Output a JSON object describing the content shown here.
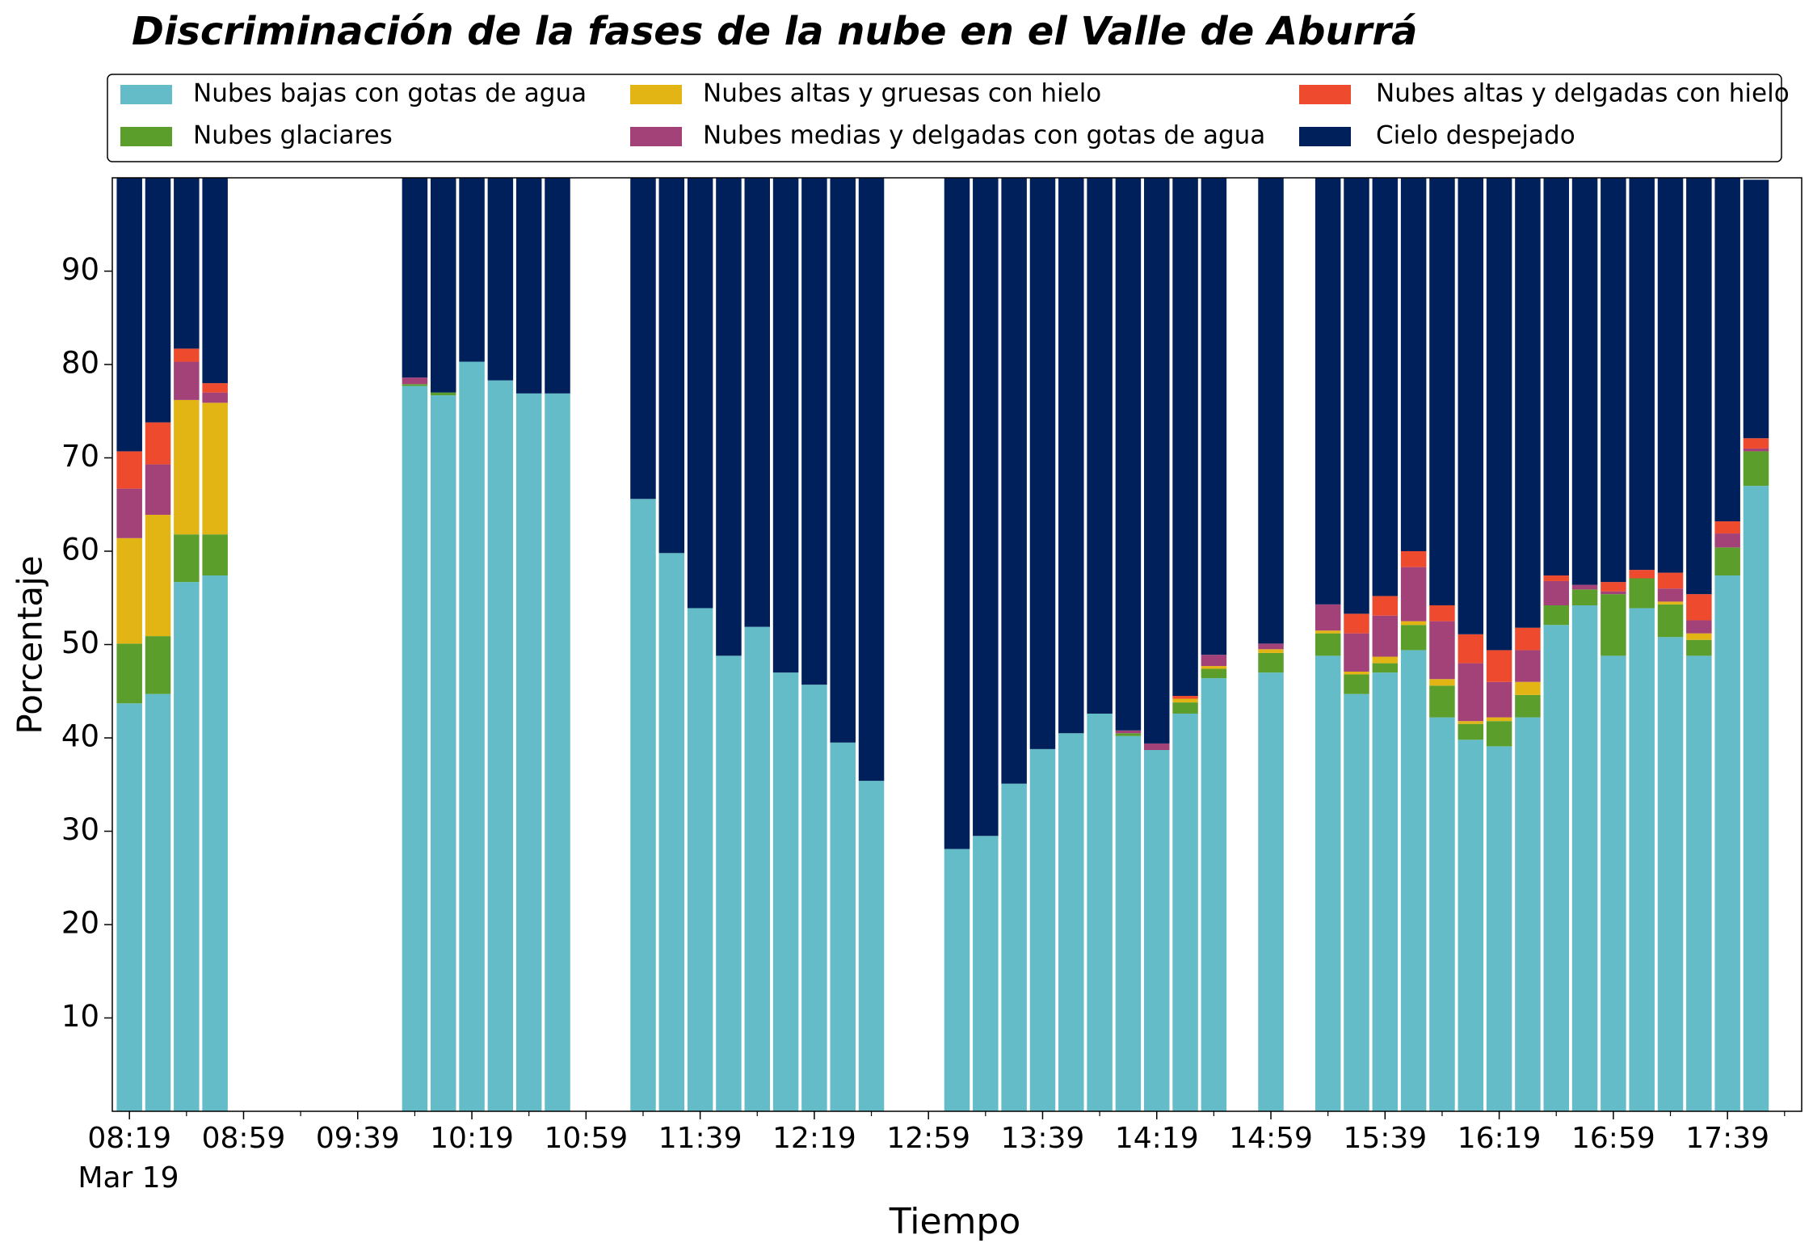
{
  "chart_data": {
    "type": "stacked_bar",
    "title": "Discriminación de la fases de la nube en el Valle de Aburrá",
    "xlabel": "Tiempo",
    "ylabel": "Porcentaje",
    "x_date_label": "Mar 19",
    "x": [
      "08:19",
      "08:29",
      "08:39",
      "08:49",
      "09:59",
      "10:09",
      "10:19",
      "10:29",
      "10:39",
      "10:49",
      "11:19",
      "11:29",
      "11:39",
      "11:49",
      "11:59",
      "12:09",
      "12:19",
      "12:29",
      "12:39",
      "13:09",
      "13:19",
      "13:29",
      "13:39",
      "13:49",
      "13:59",
      "14:09",
      "14:19",
      "14:29",
      "14:39",
      "14:59",
      "15:19",
      "15:29",
      "15:39",
      "15:49",
      "15:59",
      "16:09",
      "16:19",
      "16:29",
      "16:39",
      "16:49",
      "16:59",
      "17:09",
      "17:19",
      "17:29",
      "17:39",
      "17:49"
    ],
    "series": [
      {
        "name": "Nubes bajas con gotas de agua",
        "color": "#64bcc8",
        "values": [
          43.7,
          44.7,
          56.7,
          57.4,
          77.7,
          76.7,
          80.3,
          78.3,
          76.9,
          76.9,
          65.6,
          59.8,
          53.9,
          48.8,
          51.9,
          47.0,
          45.7,
          39.5,
          35.4,
          28.1,
          29.5,
          35.1,
          38.8,
          40.5,
          42.6,
          40.2,
          38.7,
          42.6,
          46.4,
          47.0,
          48.8,
          44.7,
          47.0,
          49.4,
          42.2,
          39.8,
          39.1,
          42.2,
          52.1,
          54.2,
          48.8,
          53.9,
          50.8,
          48.8,
          57.4,
          67.0
        ]
      },
      {
        "name": "Nubes glaciares",
        "color": "#5b9e2c",
        "values": [
          6.4,
          6.2,
          5.1,
          4.4,
          0.2,
          0.3,
          0,
          0,
          0,
          0,
          0,
          0,
          0,
          0,
          0,
          0,
          0,
          0,
          0,
          0,
          0,
          0,
          0,
          0,
          0,
          0.3,
          0,
          1.2,
          1.0,
          2.1,
          2.4,
          2.1,
          1.0,
          2.7,
          3.4,
          1.7,
          2.7,
          2.4,
          2.1,
          1.7,
          6.6,
          3.2,
          3.5,
          1.7,
          3.0,
          3.7
        ]
      },
      {
        "name": "Nubes altas y gruesas con hielo",
        "color": "#e3b514",
        "values": [
          11.3,
          13.0,
          14.4,
          14.1,
          0,
          0,
          0,
          0,
          0,
          0,
          0,
          0,
          0,
          0,
          0,
          0,
          0,
          0,
          0,
          0,
          0,
          0,
          0,
          0,
          0,
          0,
          0,
          0.4,
          0.3,
          0.4,
          0.3,
          0.3,
          0.7,
          0.4,
          0.7,
          0.3,
          0.4,
          1.4,
          0,
          0,
          0,
          0,
          0.3,
          0.7,
          0,
          0
        ]
      },
      {
        "name": "Nubes medias y delgadas con gotas de agua",
        "color": "#a24279",
        "values": [
          5.3,
          5.4,
          4.1,
          1.1,
          0.7,
          0,
          0,
          0,
          0,
          0,
          0,
          0,
          0,
          0,
          0,
          0,
          0,
          0,
          0,
          0,
          0,
          0,
          0,
          0,
          0,
          0.3,
          0.7,
          0,
          1.2,
          0.6,
          2.8,
          4.1,
          4.4,
          5.8,
          6.2,
          6.2,
          3.8,
          3.4,
          2.6,
          0.5,
          0.3,
          0,
          1.4,
          1.4,
          1.5,
          0.3
        ]
      },
      {
        "name": "Nubes altas y delgadas con hielo",
        "color": "#ee4a2e",
        "values": [
          4.0,
          4.5,
          1.4,
          1.0,
          0,
          0,
          0,
          0,
          0,
          0,
          0,
          0,
          0,
          0,
          0,
          0,
          0,
          0,
          0,
          0,
          0,
          0,
          0,
          0,
          0,
          0,
          0,
          0.3,
          0,
          0,
          0,
          2.1,
          2.1,
          1.7,
          1.7,
          3.1,
          3.4,
          2.4,
          0.6,
          0,
          1.0,
          0.9,
          1.7,
          2.8,
          1.3,
          1.1
        ]
      },
      {
        "name": "Cielo despejado",
        "color": "#00205b",
        "values": [
          29.3,
          26.2,
          18.3,
          22.0,
          21.4,
          23.0,
          19.7,
          21.7,
          23.1,
          23.1,
          34.4,
          40.2,
          46.1,
          51.2,
          48.1,
          53.0,
          54.3,
          60.5,
          64.6,
          71.9,
          70.5,
          64.9,
          61.2,
          59.5,
          57.4,
          59.2,
          60.6,
          55.5,
          51.1,
          49.9,
          45.7,
          46.7,
          44.8,
          40.0,
          45.8,
          48.9,
          50.6,
          48.2,
          42.6,
          43.6,
          43.3,
          42.0,
          42.3,
          44.6,
          36.8,
          27.7
        ]
      }
    ],
    "xlim": [
      "08:13",
      "18:05"
    ],
    "xticks": [
      "08:19",
      "08:59",
      "09:39",
      "10:19",
      "10:59",
      "11:39",
      "12:19",
      "12:59",
      "13:39",
      "14:19",
      "14:59",
      "15:39",
      "16:19",
      "16:59",
      "17:39"
    ],
    "xminorticks": [
      "08:39",
      "09:19",
      "09:59",
      "10:39",
      "11:19",
      "11:59",
      "12:39",
      "13:19",
      "13:59",
      "14:39",
      "15:19",
      "15:59",
      "16:39",
      "17:19",
      "17:59"
    ],
    "ylim": [
      0,
      100
    ],
    "yticks": [
      10,
      20,
      30,
      40,
      50,
      60,
      70,
      80,
      90
    ],
    "legend": "top"
  }
}
